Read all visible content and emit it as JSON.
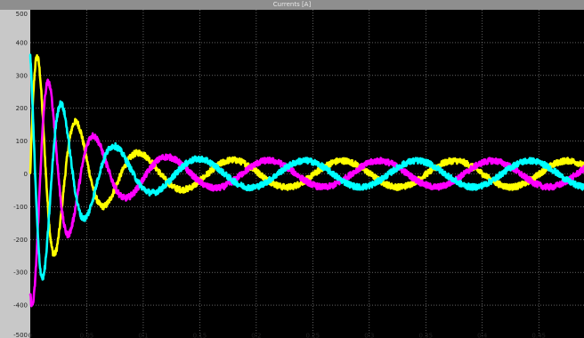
{
  "window": {
    "title": "Currents [A]"
  },
  "colors": {
    "background": "#000000",
    "frame": "#c8c8c8",
    "grid": "#d0d0d0",
    "phase_a": "#ffff00",
    "phase_b": "#ff00ff",
    "phase_c": "#00ffff"
  },
  "chart_data": {
    "type": "line",
    "title": "Currents [A]",
    "xlabel": "",
    "ylabel": "",
    "grid": true,
    "xlim": [
      0,
      0.5
    ],
    "ylim": [
      -500,
      500
    ],
    "yticks": [
      "500",
      "400",
      "300",
      "200",
      "100",
      "0",
      "-100",
      "-200",
      "-300",
      "-400",
      "-500"
    ],
    "xticks": [
      "0",
      "0.05",
      "0.1",
      "0.15",
      "0.2",
      "0.25",
      "0.3",
      "0.35",
      "0.4",
      "0.45"
    ],
    "series": [
      {
        "color": "#ffff00",
        "phase_deg": 0,
        "frequency_hz_start": 40,
        "frequency_hz_end": 10,
        "chirp_time_constant_s": 0.05,
        "envelope": {
          "initial_peak": 420,
          "steady_peak": 40,
          "time_constant_s": 0.035
        },
        "noise_band": 9
      },
      {
        "color": "#ff00ff",
        "phase_deg": -120,
        "frequency_hz_start": 40,
        "frequency_hz_end": 10,
        "chirp_time_constant_s": 0.05,
        "envelope": {
          "initial_peak": 420,
          "steady_peak": 40,
          "time_constant_s": 0.035
        },
        "noise_band": 9
      },
      {
        "color": "#00ffff",
        "phase_deg": 120,
        "frequency_hz_start": 40,
        "frequency_hz_end": 10,
        "chirp_time_constant_s": 0.05,
        "envelope": {
          "initial_peak": 420,
          "steady_peak": 40,
          "time_constant_s": 0.035
        },
        "noise_band": 9
      }
    ]
  }
}
